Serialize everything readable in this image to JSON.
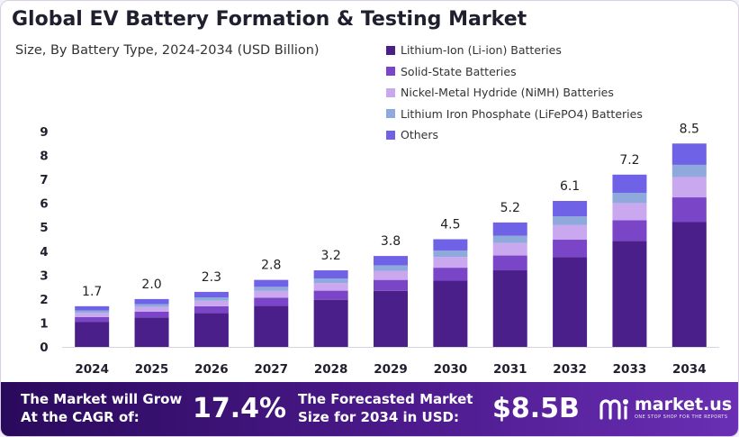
{
  "header": {
    "title": "Global EV Battery Formation & Testing Market",
    "subtitle": "Size, By Battery Type, 2024-2034 (USD Billion)"
  },
  "chart_data": {
    "type": "bar",
    "stacked": true,
    "categories": [
      "2024",
      "2025",
      "2026",
      "2027",
      "2028",
      "2029",
      "2030",
      "2031",
      "2032",
      "2033",
      "2034"
    ],
    "totals": [
      1.7,
      2.0,
      2.3,
      2.8,
      3.2,
      3.8,
      4.5,
      5.2,
      6.1,
      7.2,
      8.5
    ],
    "total_labels": [
      "1.7",
      "2.0",
      "2.3",
      "2.8",
      "3.2",
      "3.8",
      "4.5",
      "5.2",
      "6.1",
      "7.2",
      "8.5"
    ],
    "series": [
      {
        "name": "Lithium-Ion (Li-ion) Batteries",
        "color": "#4a1f8a",
        "values": [
          1.05,
          1.23,
          1.42,
          1.72,
          1.97,
          2.34,
          2.77,
          3.2,
          3.75,
          4.43,
          5.23
        ]
      },
      {
        "name": "Solid-State Batteries",
        "color": "#7b45c8",
        "values": [
          0.2,
          0.24,
          0.28,
          0.34,
          0.38,
          0.46,
          0.54,
          0.62,
          0.73,
          0.86,
          1.02
        ]
      },
      {
        "name": "Nickel-Metal Hydride (NiMH) Batteries",
        "color": "#caa8ef",
        "values": [
          0.17,
          0.2,
          0.23,
          0.28,
          0.32,
          0.38,
          0.45,
          0.52,
          0.61,
          0.72,
          0.85
        ]
      },
      {
        "name": "Lithium Iron Phosphate (LiFePO4) Batteries",
        "color": "#8fa9dc",
        "values": [
          0.1,
          0.12,
          0.14,
          0.17,
          0.19,
          0.23,
          0.27,
          0.31,
          0.37,
          0.43,
          0.51
        ]
      },
      {
        "name": "Others",
        "color": "#6f62e6",
        "values": [
          0.18,
          0.21,
          0.23,
          0.29,
          0.34,
          0.39,
          0.47,
          0.55,
          0.64,
          0.76,
          0.89
        ]
      }
    ],
    "y_ticks": [
      "0",
      "1",
      "2",
      "3",
      "4",
      "5",
      "6",
      "7",
      "8",
      "9"
    ],
    "ylim": [
      0,
      9
    ],
    "xlabel": "",
    "ylabel": "",
    "grid": false,
    "legend_position": "top-right"
  },
  "footer": {
    "cagr_text_line1": "The Market will Grow",
    "cagr_text_line2": "At the CAGR of:",
    "cagr_value": "17.4%",
    "forecast_text_line1": "The Forecasted Market",
    "forecast_text_line2": "Size for 2034 in USD:",
    "forecast_value": "$8.5B",
    "brand_name": "market.us",
    "brand_tagline": "ONE STOP SHOP FOR THE REPORTS"
  }
}
